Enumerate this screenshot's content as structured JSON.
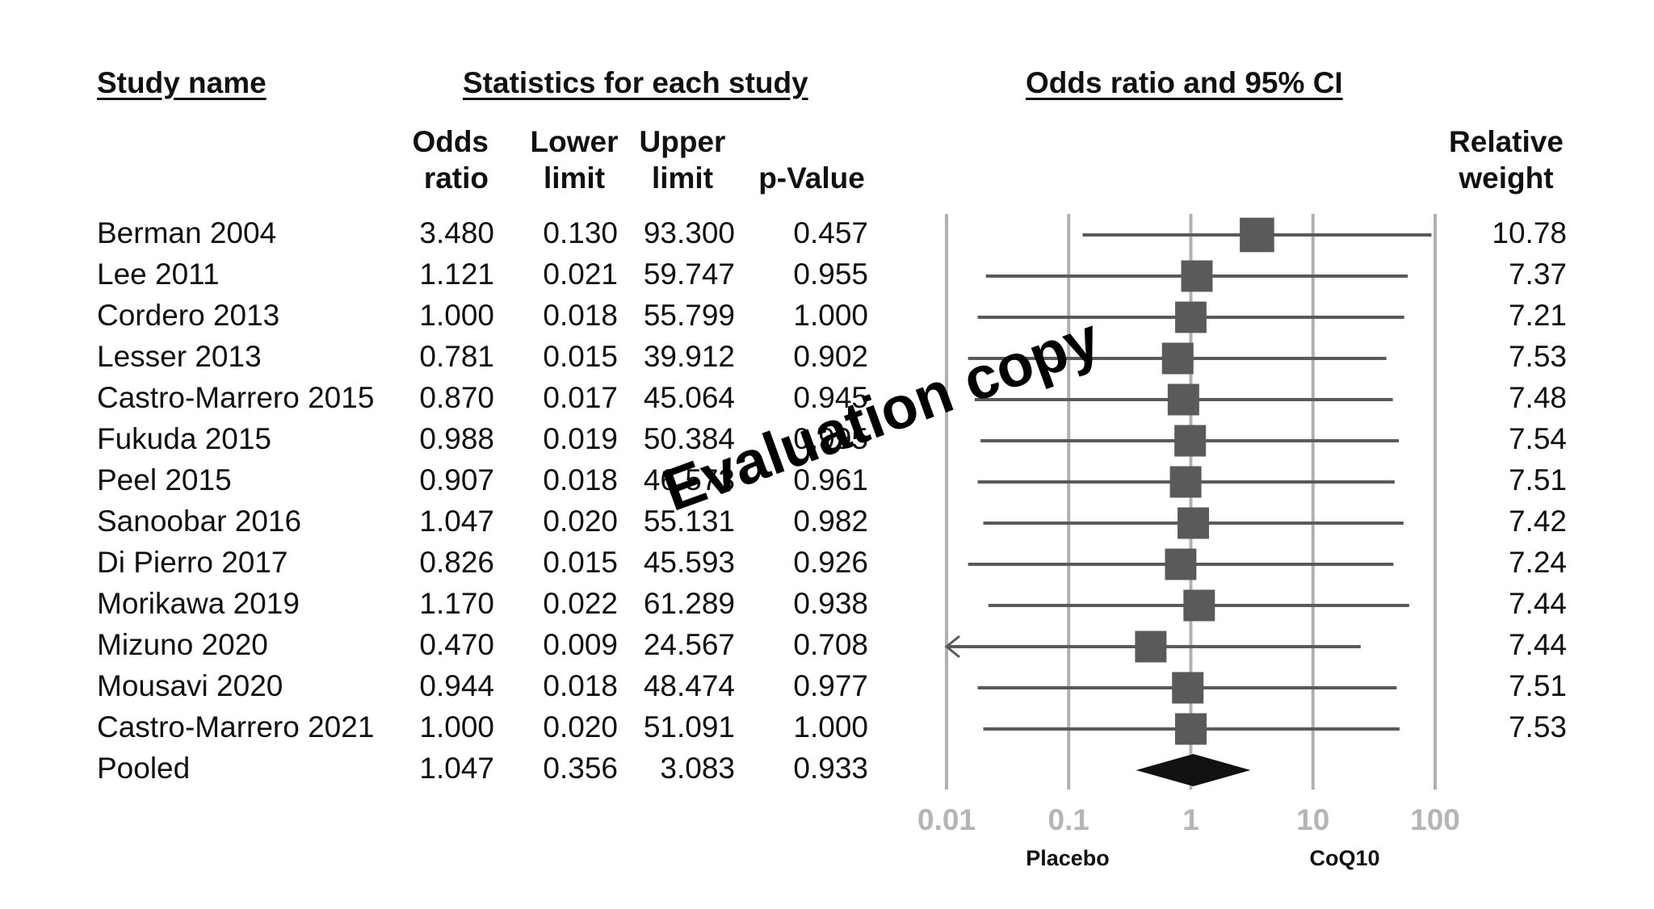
{
  "headers": {
    "study_name": "Study name",
    "statistics": "Statistics for each study",
    "odds_ci": "Odds ratio and 95% CI"
  },
  "columns": {
    "odds_ratio": [
      "Odds",
      "ratio"
    ],
    "lower": [
      "Lower",
      "limit"
    ],
    "upper": [
      "Upper",
      "limit"
    ],
    "pvalue": [
      "",
      "p-Value"
    ],
    "weight": [
      "Relative",
      "weight"
    ]
  },
  "rows": [
    {
      "study": "Berman 2004",
      "or": "3.480",
      "lower": "0.130",
      "upper": "93.300",
      "p": "0.457",
      "weight": "10.78"
    },
    {
      "study": "Lee 2011",
      "or": "1.121",
      "lower": "0.021",
      "upper": "59.747",
      "p": "0.955",
      "weight": "7.37"
    },
    {
      "study": "Cordero 2013",
      "or": "1.000",
      "lower": "0.018",
      "upper": "55.799",
      "p": "1.000",
      "weight": "7.21"
    },
    {
      "study": "Lesser 2013",
      "or": "0.781",
      "lower": "0.015",
      "upper": "39.912",
      "p": "0.902",
      "weight": "7.53"
    },
    {
      "study": "Castro-Marrero 2015",
      "or": "0.870",
      "lower": "0.017",
      "upper": "45.064",
      "p": "0.945",
      "weight": "7.48"
    },
    {
      "study": "Fukuda 2015",
      "or": "0.988",
      "lower": "0.019",
      "upper": "50.384",
      "p": "0.995",
      "weight": "7.54"
    },
    {
      "study": "Peel 2015",
      "or": "0.907",
      "lower": "0.018",
      "upper": "46.573",
      "p": "0.961",
      "weight": "7.51"
    },
    {
      "study": "Sanoobar 2016",
      "or": "1.047",
      "lower": "0.020",
      "upper": "55.131",
      "p": "0.982",
      "weight": "7.42"
    },
    {
      "study": "Di Pierro 2017",
      "or": "0.826",
      "lower": "0.015",
      "upper": "45.593",
      "p": "0.926",
      "weight": "7.24"
    },
    {
      "study": "Morikawa 2019",
      "or": "1.170",
      "lower": "0.022",
      "upper": "61.289",
      "p": "0.938",
      "weight": "7.44"
    },
    {
      "study": "Mizuno 2020",
      "or": "0.470",
      "lower": "0.009",
      "upper": "24.567",
      "p": "0.708",
      "weight": "7.44"
    },
    {
      "study": "Mousavi 2020",
      "or": "0.944",
      "lower": "0.018",
      "upper": "48.474",
      "p": "0.977",
      "weight": "7.51"
    },
    {
      "study": "Castro-Marrero 2021",
      "or": "1.000",
      "lower": "0.020",
      "upper": "51.091",
      "p": "1.000",
      "weight": "7.53"
    },
    {
      "study": "Pooled",
      "or": "1.047",
      "lower": "0.356",
      "upper": "3.083",
      "p": "0.933",
      "weight": ""
    }
  ],
  "axis": {
    "tick_labels": [
      "0.01",
      "0.1",
      "1",
      "10",
      "100"
    ],
    "left_label": "Placebo",
    "right_label": "CoQ10"
  },
  "watermark": "Evaluation copy",
  "chart_data": {
    "type": "forest",
    "x_scale": "log",
    "xlim": [
      0.01,
      100
    ],
    "ticks": [
      0.01,
      0.1,
      1,
      10,
      100
    ],
    "grid": true,
    "studies": [
      {
        "name": "Berman 2004",
        "or": 3.48,
        "lower": 0.13,
        "upper": 93.3,
        "weight": 10.78
      },
      {
        "name": "Lee 2011",
        "or": 1.121,
        "lower": 0.021,
        "upper": 59.747,
        "weight": 7.37
      },
      {
        "name": "Cordero 2013",
        "or": 1.0,
        "lower": 0.018,
        "upper": 55.799,
        "weight": 7.21
      },
      {
        "name": "Lesser 2013",
        "or": 0.781,
        "lower": 0.015,
        "upper": 39.912,
        "weight": 7.53
      },
      {
        "name": "Castro-Marrero 2015",
        "or": 0.87,
        "lower": 0.017,
        "upper": 45.064,
        "weight": 7.48
      },
      {
        "name": "Fukuda 2015",
        "or": 0.988,
        "lower": 0.019,
        "upper": 50.384,
        "weight": 7.54
      },
      {
        "name": "Peel 2015",
        "or": 0.907,
        "lower": 0.018,
        "upper": 46.573,
        "weight": 7.51
      },
      {
        "name": "Sanoobar 2016",
        "or": 1.047,
        "lower": 0.02,
        "upper": 55.131,
        "weight": 7.42
      },
      {
        "name": "Di Pierro 2017",
        "or": 0.826,
        "lower": 0.015,
        "upper": 45.593,
        "weight": 7.24
      },
      {
        "name": "Morikawa 2019",
        "or": 1.17,
        "lower": 0.022,
        "upper": 61.289,
        "weight": 7.44
      },
      {
        "name": "Mizuno 2020",
        "or": 0.47,
        "lower": 0.009,
        "upper": 24.567,
        "weight": 7.44
      },
      {
        "name": "Mousavi 2020",
        "or": 0.944,
        "lower": 0.018,
        "upper": 48.474,
        "weight": 7.51
      },
      {
        "name": "Castro-Marrero 2021",
        "or": 1.0,
        "lower": 0.02,
        "upper": 51.091,
        "weight": 7.53
      }
    ],
    "pooled": {
      "name": "Pooled",
      "or": 1.047,
      "lower": 0.356,
      "upper": 3.083
    },
    "colors": {
      "marker": "#5a5a5a",
      "line": "#5a5a5a",
      "grid": "#b0b0b0",
      "diamond": "#111111"
    }
  }
}
